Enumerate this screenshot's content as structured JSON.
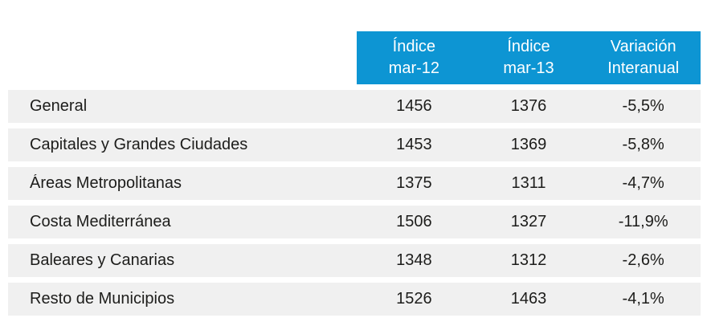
{
  "colors": {
    "header_bg": "#0d95d3",
    "header_text": "#ffffff",
    "row_bg": "#f0f0f0",
    "body_text": "#1d1d1b",
    "page_bg": "#ffffff"
  },
  "table": {
    "headers": [
      {
        "line1": "Índice",
        "line2": "mar-12"
      },
      {
        "line1": "Índice",
        "line2": "mar-13"
      },
      {
        "line1": "Variación",
        "line2": "Interanual"
      }
    ],
    "rows": [
      {
        "label": "General",
        "mar12": "1456",
        "mar13": "1376",
        "variacion": "-5,5%"
      },
      {
        "label": "Capitales y Grandes Ciudades",
        "mar12": "1453",
        "mar13": "1369",
        "variacion": "-5,8%"
      },
      {
        "label": "Áreas Metropolitanas",
        "mar12": "1375",
        "mar13": "1311",
        "variacion": "-4,7%"
      },
      {
        "label": "Costa Mediterránea",
        "mar12": "1506",
        "mar13": "1327",
        "variacion": "-11,9%"
      },
      {
        "label": "Baleares y Canarias",
        "mar12": "1348",
        "mar13": "1312",
        "variacion": "-2,6%"
      },
      {
        "label": "Resto de Municipios",
        "mar12": "1526",
        "mar13": "1463",
        "variacion": "-4,1%"
      }
    ]
  },
  "chart_data": {
    "type": "table",
    "columns": [
      "",
      "Índice mar-12",
      "Índice mar-13",
      "Variación Interanual"
    ],
    "rows": [
      [
        "General",
        1456,
        1376,
        "-5,5%"
      ],
      [
        "Capitales y Grandes Ciudades",
        1453,
        1369,
        "-5,8%"
      ],
      [
        "Áreas Metropolitanas",
        1375,
        1311,
        "-4,7%"
      ],
      [
        "Costa Mediterránea",
        1506,
        1327,
        "-11,9%"
      ],
      [
        "Baleares y Canarias",
        1348,
        1312,
        "-2,6%"
      ],
      [
        "Resto de Municipios",
        1526,
        1463,
        "-4,1%"
      ]
    ]
  }
}
